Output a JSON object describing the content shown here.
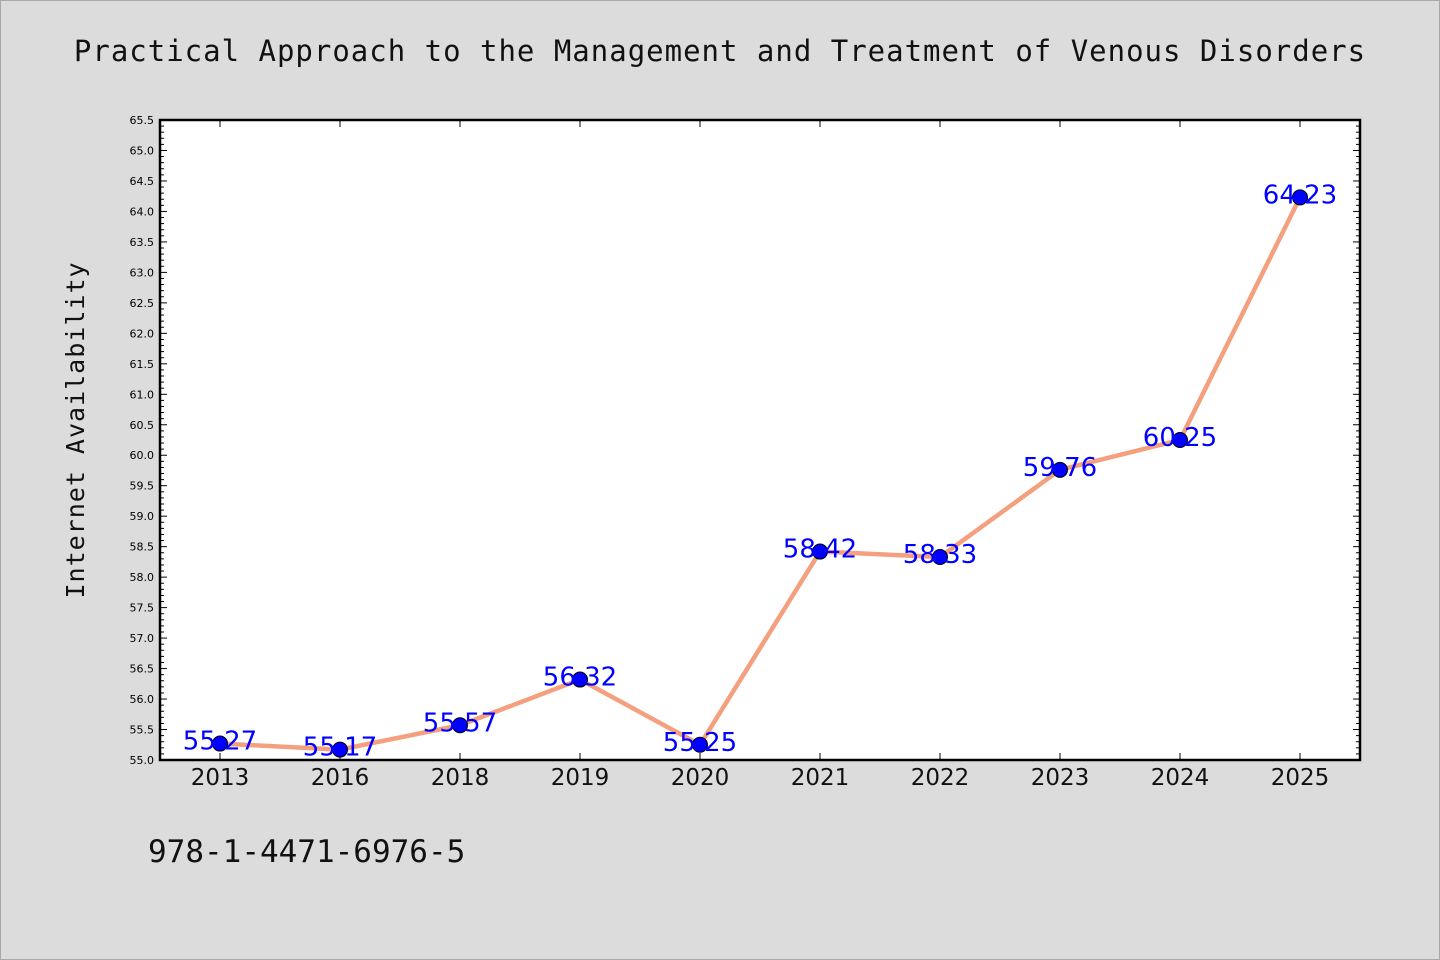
{
  "page": {
    "isbn": "978-1-4471-6976-5"
  },
  "chart_data": {
    "type": "line",
    "title": "Practical Approach to the Management and Treatment of Venous Disorders",
    "xlabel": "",
    "ylabel": "Internet Availability",
    "categories": [
      "2013",
      "2016",
      "2018",
      "2019",
      "2020",
      "2021",
      "2022",
      "2023",
      "2024",
      "2025"
    ],
    "values": [
      55.27,
      55.17,
      55.57,
      56.32,
      55.25,
      58.42,
      58.33,
      59.76,
      60.25,
      64.23
    ],
    "data_labels": [
      "55.27",
      "55.17",
      "55.57",
      "56.32",
      "55.25",
      "58.42",
      "58.33",
      "59.76",
      "60.25",
      "64.23"
    ],
    "ylim": [
      55.0,
      65.5
    ],
    "yticks": [
      "55.0",
      "55.5",
      "56.0",
      "56.5",
      "57.0",
      "57.5",
      "58.0",
      "58.5",
      "59.0",
      "59.5",
      "60.0",
      "60.5",
      "61.0",
      "61.5",
      "62.0",
      "62.5",
      "63.0",
      "63.5",
      "64.0",
      "64.5",
      "65.0",
      "65.5"
    ],
    "grid": false,
    "legend": "none",
    "colors": {
      "line": "#f4a07f",
      "marker": "#0000ff",
      "label": "#0000ff",
      "plot_bg": "#ffffff",
      "page_bg": "#dcdcdc"
    }
  }
}
